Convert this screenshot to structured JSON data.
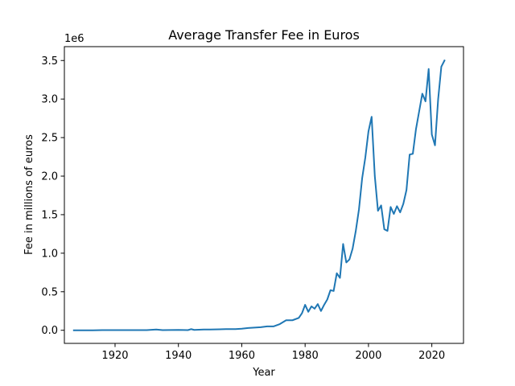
{
  "chart_data": {
    "type": "line",
    "title": "Average Transfer Fee in Euros",
    "xlabel": "Year",
    "ylabel": "Fee in millions of euros",
    "y_offset_text": "1e6",
    "xlim": [
      1904,
      2030
    ],
    "ylim": [
      -170000,
      3680000
    ],
    "xticks": [
      1920,
      1940,
      1960,
      1980,
      2000,
      2020
    ],
    "xtick_labels": [
      "1920",
      "1940",
      "1960",
      "1980",
      "2000",
      "2020"
    ],
    "yticks": [
      0,
      500000,
      1000000,
      1500000,
      2000000,
      2500000,
      3000000,
      3500000
    ],
    "ytick_labels": [
      "0.0",
      "0.5",
      "1.0",
      "1.5",
      "2.0",
      "2.5",
      "3.0",
      "3.5"
    ],
    "grid": false,
    "series_color": "#1f77b4",
    "series": [
      {
        "x": [
          1907,
          1910,
          1913,
          1916,
          1920,
          1925,
          1930,
          1933,
          1935,
          1940,
          1943,
          1944,
          1945,
          1948,
          1950,
          1953,
          1955,
          1958,
          1960,
          1962,
          1964,
          1966,
          1968,
          1970,
          1972,
          1974,
          1976,
          1978,
          1979,
          1980,
          1981,
          1982,
          1983,
          1984,
          1985,
          1986,
          1987,
          1988,
          1989,
          1990,
          1991,
          1992,
          1993,
          1994,
          1995,
          1996,
          1997,
          1998,
          1999,
          2000,
          2001,
          2002,
          2003,
          2004,
          2005,
          2006,
          2007,
          2008,
          2009,
          2010,
          2011,
          2012,
          2013,
          2014,
          2015,
          2016,
          2017,
          2018,
          2019,
          2020,
          2021,
          2022,
          2023,
          2024
        ],
        "y": [
          0,
          0,
          0,
          2000,
          2000,
          2000,
          2000,
          10000,
          2000,
          5000,
          2000,
          15000,
          5000,
          10000,
          10000,
          12000,
          15000,
          15000,
          20000,
          30000,
          35000,
          40000,
          50000,
          50000,
          80000,
          130000,
          130000,
          160000,
          220000,
          330000,
          240000,
          310000,
          280000,
          340000,
          250000,
          330000,
          400000,
          520000,
          510000,
          740000,
          680000,
          1120000,
          880000,
          920000,
          1060000,
          1290000,
          1570000,
          1970000,
          2240000,
          2580000,
          2770000,
          2000000,
          1550000,
          1620000,
          1310000,
          1290000,
          1600000,
          1510000,
          1610000,
          1530000,
          1640000,
          1820000,
          2280000,
          2290000,
          2610000,
          2840000,
          3070000,
          2970000,
          3390000,
          2540000,
          2400000,
          3000000,
          3420000,
          3500000
        ]
      }
    ]
  }
}
